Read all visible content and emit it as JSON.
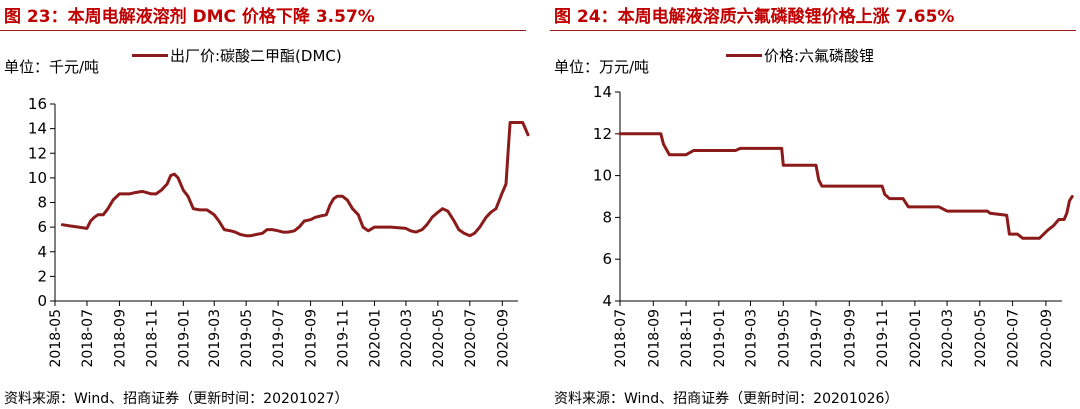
{
  "charts": [
    {
      "id": "left",
      "title": "图 23：本周电解液溶剂 DMC 价格下降 3.57%",
      "unit": "单位：千元/吨",
      "legend": "出厂价:碳酸二甲酯(DMC)",
      "source": "资料来源：Wind、招商证券（更新时间：20201027）"
    },
    {
      "id": "right",
      "title": "图 24：本周电解液溶质六氟磷酸锂价格上涨 7.65%",
      "unit": "单位：万元/吨",
      "legend": "价格:六氟磷酸锂",
      "source": "资料来源：Wind、招商证券（更新时间：20201026）"
    }
  ],
  "colors": {
    "line": "#8b1a1a",
    "title": "#c00000",
    "axis": "#000000"
  },
  "chart_data": [
    {
      "type": "line",
      "title": "图 23：本周电解液溶剂 DMC 价格下降 3.57%",
      "ylabel": "单位：千元/吨",
      "xlabel": "",
      "ylim": [
        0,
        16
      ],
      "yticks": [
        0,
        2,
        4,
        6,
        8,
        10,
        12,
        14,
        16
      ],
      "xlim": [
        "2018-05",
        "2020-10"
      ],
      "xtick_labels": [
        "2018-05",
        "2018-07",
        "2018-09",
        "2018-11",
        "2019-01",
        "2019-03",
        "2019-05",
        "2019-07",
        "2019-09",
        "2019-11",
        "2020-01",
        "2020-03",
        "2020-05",
        "2020-07",
        "2020-09"
      ],
      "grid": false,
      "legend_position": "top",
      "series": [
        {
          "name": "出厂价:碳酸二甲酯(DMC)",
          "x": [
            "2018-05-15",
            "2018-05-29",
            "2018-06-15",
            "2018-07-01",
            "2018-07-08",
            "2018-07-15",
            "2018-07-22",
            "2018-08-01",
            "2018-08-10",
            "2018-08-20",
            "2018-09-01",
            "2018-09-10",
            "2018-09-20",
            "2018-10-01",
            "2018-10-15",
            "2018-11-01",
            "2018-11-10",
            "2018-11-20",
            "2018-12-01",
            "2018-12-08",
            "2018-12-15",
            "2018-12-22",
            "2019-01-01",
            "2019-01-10",
            "2019-01-20",
            "2019-02-01",
            "2019-02-15",
            "2019-03-01",
            "2019-03-10",
            "2019-03-20",
            "2019-04-01",
            "2019-04-10",
            "2019-04-20",
            "2019-05-01",
            "2019-05-10",
            "2019-05-20",
            "2019-06-01",
            "2019-06-10",
            "2019-06-20",
            "2019-07-01",
            "2019-07-10",
            "2019-07-20",
            "2019-08-01",
            "2019-08-10",
            "2019-08-20",
            "2019-09-01",
            "2019-09-10",
            "2019-09-20",
            "2019-10-01",
            "2019-10-08",
            "2019-10-15",
            "2019-10-22",
            "2019-11-01",
            "2019-11-10",
            "2019-11-20",
            "2019-12-01",
            "2019-12-10",
            "2019-12-20",
            "2020-01-01",
            "2020-02-01",
            "2020-03-01",
            "2020-03-10",
            "2020-03-20",
            "2020-04-01",
            "2020-04-10",
            "2020-04-20",
            "2020-05-01",
            "2020-05-10",
            "2020-05-20",
            "2020-06-01",
            "2020-06-10",
            "2020-06-20",
            "2020-07-01",
            "2020-07-10",
            "2020-07-20",
            "2020-08-01",
            "2020-08-10",
            "2020-08-20",
            "2020-09-01",
            "2020-09-08",
            "2020-09-12",
            "2020-09-16",
            "2020-09-20",
            "2020-10-01",
            "2020-10-10",
            "2020-10-20"
          ],
          "y": [
            6.2,
            6.1,
            6.0,
            5.9,
            6.5,
            6.8,
            7.0,
            7.0,
            7.5,
            8.2,
            8.7,
            8.7,
            8.7,
            8.8,
            8.9,
            8.7,
            8.7,
            9.0,
            9.5,
            10.2,
            10.3,
            10.0,
            9.0,
            8.5,
            7.5,
            7.4,
            7.4,
            7.0,
            6.5,
            5.8,
            5.7,
            5.6,
            5.4,
            5.3,
            5.3,
            5.4,
            5.5,
            5.8,
            5.8,
            5.7,
            5.6,
            5.6,
            5.7,
            6.0,
            6.5,
            6.6,
            6.8,
            6.9,
            7.0,
            7.8,
            8.3,
            8.5,
            8.5,
            8.2,
            7.5,
            7.0,
            6.0,
            5.7,
            6.0,
            6.0,
            5.9,
            5.7,
            5.6,
            5.8,
            6.2,
            6.8,
            7.2,
            7.5,
            7.3,
            6.5,
            5.8,
            5.5,
            5.3,
            5.5,
            6.0,
            6.8,
            7.2,
            7.5,
            8.8,
            9.5,
            12.0,
            14.5,
            14.5,
            14.5,
            14.5,
            13.5
          ]
        }
      ]
    },
    {
      "type": "line",
      "title": "图 24：本周电解液溶质六氟磷酸锂价格上涨 7.65%",
      "ylabel": "单位：万元/吨",
      "xlabel": "",
      "ylim": [
        4,
        14
      ],
      "yticks": [
        4,
        6,
        8,
        10,
        12,
        14
      ],
      "xlim": [
        "2018-07",
        "2020-10"
      ],
      "xtick_labels": [
        "2018-07",
        "2018-09",
        "2018-11",
        "2019-01",
        "2019-03",
        "2019-05",
        "2019-07",
        "2019-09",
        "2019-11",
        "2020-01",
        "2020-03",
        "2020-05",
        "2020-07",
        "2020-09"
      ],
      "grid": false,
      "legend_position": "top",
      "series": [
        {
          "name": "价格:六氟磷酸锂",
          "x": [
            "2018-07-01",
            "2018-09-15",
            "2018-09-20",
            "2018-10-01",
            "2018-11-01",
            "2018-11-15",
            "2019-02-01",
            "2019-02-10",
            "2019-04-28",
            "2019-05-01",
            "2019-07-01",
            "2019-07-06",
            "2019-07-12",
            "2019-11-01",
            "2019-11-06",
            "2019-11-15",
            "2019-12-10",
            "2019-12-20",
            "2020-02-15",
            "2020-03-01",
            "2020-05-15",
            "2020-05-20",
            "2020-06-20",
            "2020-06-25",
            "2020-07-10",
            "2020-07-20",
            "2020-08-20",
            "2020-09-05",
            "2020-09-15",
            "2020-09-25",
            "2020-10-05",
            "2020-10-10",
            "2020-10-15",
            "2020-10-20"
          ],
          "y": [
            12.0,
            12.0,
            11.5,
            11.0,
            11.0,
            11.2,
            11.2,
            11.3,
            11.3,
            10.5,
            10.5,
            9.8,
            9.5,
            9.5,
            9.1,
            8.9,
            8.9,
            8.5,
            8.5,
            8.3,
            8.3,
            8.2,
            8.1,
            7.2,
            7.2,
            7.0,
            7.0,
            7.4,
            7.6,
            7.9,
            7.9,
            8.2,
            8.8,
            9.0
          ]
        }
      ]
    }
  ]
}
